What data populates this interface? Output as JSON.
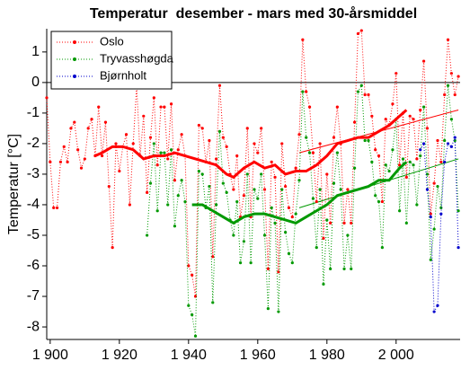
{
  "chart_data": {
    "type": "line",
    "title": "Temperatur  desember - mars med 30-årsmiddel",
    "y_label": "Temperatur [°C]",
    "xlim": [
      1899,
      2018.5
    ],
    "ylim": [
      -8.41,
      1.76
    ],
    "xticks": [
      {
        "value": 1900,
        "label": "1 900"
      },
      {
        "value": 1920,
        "label": "1 920"
      },
      {
        "value": 1940,
        "label": "1 940"
      },
      {
        "value": 1960,
        "label": "1 960"
      },
      {
        "value": 1980,
        "label": "1 980"
      },
      {
        "value": 2000,
        "label": "2 000"
      }
    ],
    "yticks": [
      -8,
      -7,
      -6,
      -5,
      -4,
      -3,
      -2,
      -1,
      0,
      1
    ],
    "zero_line": true,
    "legend": "upper-left",
    "series": [
      {
        "name": "Oslo",
        "color": "#ff0000",
        "style": "points",
        "x": [
          1899,
          1900,
          1901,
          1902,
          1903,
          1904,
          1905,
          1906,
          1907,
          1908,
          1909,
          1910,
          1911,
          1912,
          1913,
          1914,
          1915,
          1916,
          1917,
          1918,
          1919,
          1920,
          1921,
          1922,
          1923,
          1924,
          1925,
          1926,
          1927,
          1928,
          1929,
          1930,
          1931,
          1932,
          1933,
          1934,
          1935,
          1936,
          1937,
          1938,
          1939,
          1940,
          1941,
          1942,
          1943,
          1944,
          1945,
          1946,
          1947,
          1948,
          1949,
          1950,
          1951,
          1952,
          1953,
          1954,
          1955,
          1956,
          1957,
          1958,
          1959,
          1960,
          1961,
          1962,
          1963,
          1964,
          1965,
          1966,
          1967,
          1968,
          1969,
          1970,
          1971,
          1972,
          1973,
          1974,
          1975,
          1976,
          1977,
          1978,
          1979,
          1980,
          1981,
          1982,
          1983,
          1984,
          1985,
          1986,
          1987,
          1988,
          1989,
          1990,
          1991,
          1992,
          1993,
          1994,
          1995,
          1996,
          1997,
          1998,
          1999,
          2000,
          2001,
          2002,
          2003,
          2004,
          2005,
          2006,
          2007,
          2008,
          2009,
          2010,
          2011,
          2012,
          2013,
          2014,
          2015,
          2016,
          2017,
          2018
        ],
        "values": [
          -0.5,
          -2.6,
          -4.1,
          -4.1,
          -2.6,
          -2.1,
          -2.6,
          -1.5,
          -1.3,
          -2.2,
          -2.8,
          -2.5,
          -1.5,
          -1.2,
          -2.4,
          -0.8,
          -2.4,
          -1.3,
          -3.4,
          -5.4,
          -2.0,
          -2.9,
          -2.1,
          -1.7,
          -4.0,
          -2.0,
          -0.1,
          -2.4,
          -1.1,
          -3.6,
          -1.8,
          -0.5,
          -2.7,
          -0.8,
          -0.8,
          -2.5,
          -0.7,
          -3.2,
          -2.2,
          -1.7,
          -2.4,
          -6.0,
          -6.3,
          -7.0,
          -1.4,
          -1.5,
          -2.6,
          -1.9,
          -5.7,
          -2.5,
          -0.1,
          -1.8,
          -2.1,
          -3.0,
          -3.5,
          -2.4,
          -4.4,
          -3.7,
          -1.5,
          -4.4,
          -2.0,
          -2.3,
          -1.5,
          -3.5,
          -6.1,
          -2.6,
          -3.1,
          -6.2,
          -2.0,
          -3.4,
          -4.1,
          -4.4,
          -2.8,
          -1.7,
          1.4,
          -0.3,
          -0.8,
          -2.3,
          -3.9,
          -2.0,
          -5.1,
          -3.0,
          -4.6,
          -1.8,
          -0.8,
          -2.0,
          -4.6,
          -3.5,
          -4.6,
          -1.3,
          1.6,
          1.7,
          -0.4,
          -0.4,
          -1.1,
          -2.2,
          -2.4,
          -3.9,
          -1.2,
          -1.4,
          -0.7,
          0.3,
          -2.7,
          -1.0,
          -3.1,
          -1.1,
          -1.2,
          -2.5,
          -0.9,
          0.7,
          -1.5,
          -4.3,
          -3.3,
          -1.9,
          -2.6,
          -0.4,
          1.4,
          0.3,
          -0.4,
          0.2
        ]
      },
      {
        "name": "Tryvasshøgda",
        "color": "#009900",
        "style": "points",
        "x": [
          1928,
          1929,
          1930,
          1931,
          1932,
          1933,
          1934,
          1935,
          1936,
          1937,
          1938,
          1939,
          1940,
          1941,
          1942,
          1943,
          1944,
          1945,
          1946,
          1947,
          1948,
          1949,
          1950,
          1951,
          1952,
          1953,
          1954,
          1955,
          1956,
          1957,
          1958,
          1959,
          1960,
          1961,
          1962,
          1963,
          1964,
          1965,
          1966,
          1967,
          1968,
          1969,
          1970,
          1971,
          1972,
          1973,
          1974,
          1975,
          1976,
          1977,
          1978,
          1979,
          1980,
          1981,
          1982,
          1983,
          1984,
          1985,
          1986,
          1987,
          1988,
          1989,
          1990,
          1991,
          1992,
          1993,
          1994,
          1995,
          1996,
          1997,
          1998,
          1999,
          2000,
          2001,
          2002,
          2003,
          2004,
          2005,
          2006,
          2007,
          2008,
          2009,
          2010,
          2011,
          2012,
          2013,
          2014,
          2015,
          2016,
          2017,
          2018
        ],
        "values": [
          -5.0,
          -3.3,
          -2.0,
          -4.2,
          -2.3,
          -2.3,
          -4.0,
          -2.2,
          -4.7,
          -3.7,
          -3.2,
          -3.9,
          -7.3,
          -7.6,
          -8.3,
          -2.9,
          -3.0,
          -4.1,
          -3.4,
          -7.2,
          -4.0,
          -1.6,
          -3.3,
          -3.6,
          -4.5,
          -5.0,
          -3.9,
          -5.9,
          -5.2,
          -3.0,
          -5.9,
          -3.5,
          -3.8,
          -3.0,
          -5.0,
          -7.4,
          -4.1,
          -4.6,
          -7.5,
          -3.5,
          -4.9,
          -5.6,
          -5.9,
          -4.3,
          -3.2,
          -0.3,
          -1.8,
          -2.3,
          -3.8,
          -5.4,
          -3.5,
          -6.6,
          -4.5,
          -6.1,
          -3.3,
          -2.3,
          -3.5,
          -6.1,
          -5.0,
          -6.1,
          -2.8,
          -0.3,
          -0.1,
          -1.9,
          -1.9,
          -2.6,
          -3.7,
          -3.9,
          -5.4,
          -2.7,
          -2.9,
          -2.2,
          -1.2,
          -4.2,
          -2.5,
          -4.6,
          -2.6,
          -2.7,
          -4.0,
          -2.4,
          -0.8,
          -3.0,
          -5.8,
          -4.8,
          -3.4,
          -4.1,
          -1.9,
          -0.1,
          -1.2,
          -1.9,
          -4.2
        ]
      },
      {
        "name": "Bjørnholt",
        "color": "#0000cc",
        "style": "points",
        "x": [
          2007,
          2008,
          2009,
          2010,
          2011,
          2012,
          2013,
          2014,
          2015,
          2016,
          2017,
          2018
        ],
        "values": [
          -2.2,
          -2.0,
          -3.5,
          -4.4,
          -7.5,
          -7.3,
          -4.3,
          -2.6,
          -2.0,
          -2.1,
          -1.8,
          -5.4
        ]
      },
      {
        "color": "#ff0000",
        "style": "mean",
        "x": [
          1913,
          1915,
          1918,
          1921,
          1924,
          1927,
          1930,
          1933,
          1936,
          1939,
          1942,
          1945,
          1948,
          1951,
          1953,
          1956,
          1959,
          1962,
          1965,
          1968,
          1971,
          1974,
          1977,
          1980,
          1983,
          1986,
          1989,
          1992,
          1995,
          1998,
          2001,
          2003
        ],
        "values": [
          -2.4,
          -2.3,
          -2.1,
          -2.1,
          -2.2,
          -2.5,
          -2.4,
          -2.4,
          -2.3,
          -2.4,
          -2.5,
          -2.6,
          -2.7,
          -3.0,
          -3.1,
          -2.8,
          -2.6,
          -2.8,
          -2.7,
          -3.0,
          -2.9,
          -2.9,
          -2.7,
          -2.4,
          -2.0,
          -1.9,
          -1.8,
          -1.8,
          -1.6,
          -1.4,
          -1.1,
          -0.9
        ]
      },
      {
        "color": "#009900",
        "style": "mean",
        "x": [
          1941,
          1944,
          1947,
          1950,
          1953,
          1956,
          1959,
          1962,
          1965,
          1968,
          1971,
          1974,
          1977,
          1980,
          1983,
          1986,
          1989,
          1992,
          1995,
          1998,
          2001,
          2003
        ],
        "values": [
          -4.0,
          -4.0,
          -4.2,
          -4.4,
          -4.6,
          -4.4,
          -4.3,
          -4.3,
          -4.4,
          -4.5,
          -4.6,
          -4.4,
          -4.2,
          -4.0,
          -3.7,
          -3.6,
          -3.5,
          -3.4,
          -3.2,
          -3.2,
          -2.8,
          -2.6
        ]
      },
      {
        "color": "#ff0000",
        "style": "trend",
        "x": [
          1972,
          2018
        ],
        "values": [
          -2.3,
          -0.9
        ]
      },
      {
        "color": "#009900",
        "style": "trend",
        "x": [
          1972,
          2018
        ],
        "values": [
          -4.1,
          -2.5
        ]
      }
    ]
  }
}
